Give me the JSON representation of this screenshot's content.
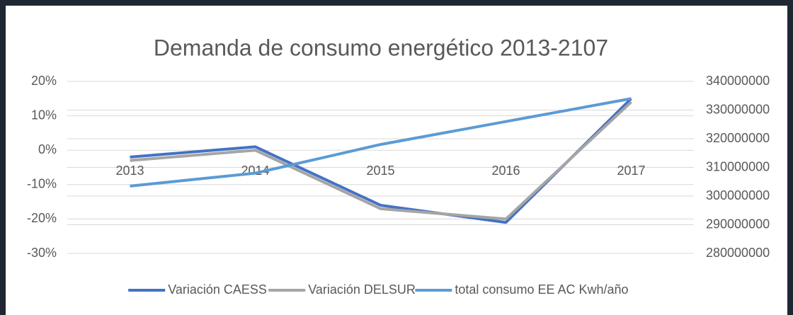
{
  "chart_data": {
    "type": "line",
    "title": "Demanda de consumo energético 2013-2107",
    "categories": [
      "2013",
      "2014",
      "2015",
      "2016",
      "2017"
    ],
    "series": [
      {
        "name": "Variación CAESS",
        "color": "#4472c4",
        "values": [
          -2,
          1,
          -16,
          -21,
          15
        ]
      },
      {
        "name": "Variación DELSUR",
        "color": "#a5a5a5",
        "values": [
          -3,
          0,
          -17,
          -20,
          14
        ]
      },
      {
        "name": "total consumo EE AC Kwh/año",
        "color": "#5b9bd5",
        "axis": "y2",
        "values": [
          303500000,
          308000000,
          318000000,
          326000000,
          334000000
        ]
      }
    ],
    "ylim": [
      -30,
      20
    ],
    "yticks": [
      {
        "value": -30,
        "label": "-30%"
      },
      {
        "value": -20,
        "label": "-20%"
      },
      {
        "value": -10,
        "label": "-10%"
      },
      {
        "value": 0,
        "label": "0%"
      },
      {
        "value": 10,
        "label": "10%"
      },
      {
        "value": 20,
        "label": "20%"
      }
    ],
    "y2lim": [
      280000000,
      340000000
    ],
    "y2ticks": [
      280000000,
      290000000,
      300000000,
      310000000,
      320000000,
      330000000,
      340000000
    ],
    "grid": true,
    "legend": "bottom"
  }
}
